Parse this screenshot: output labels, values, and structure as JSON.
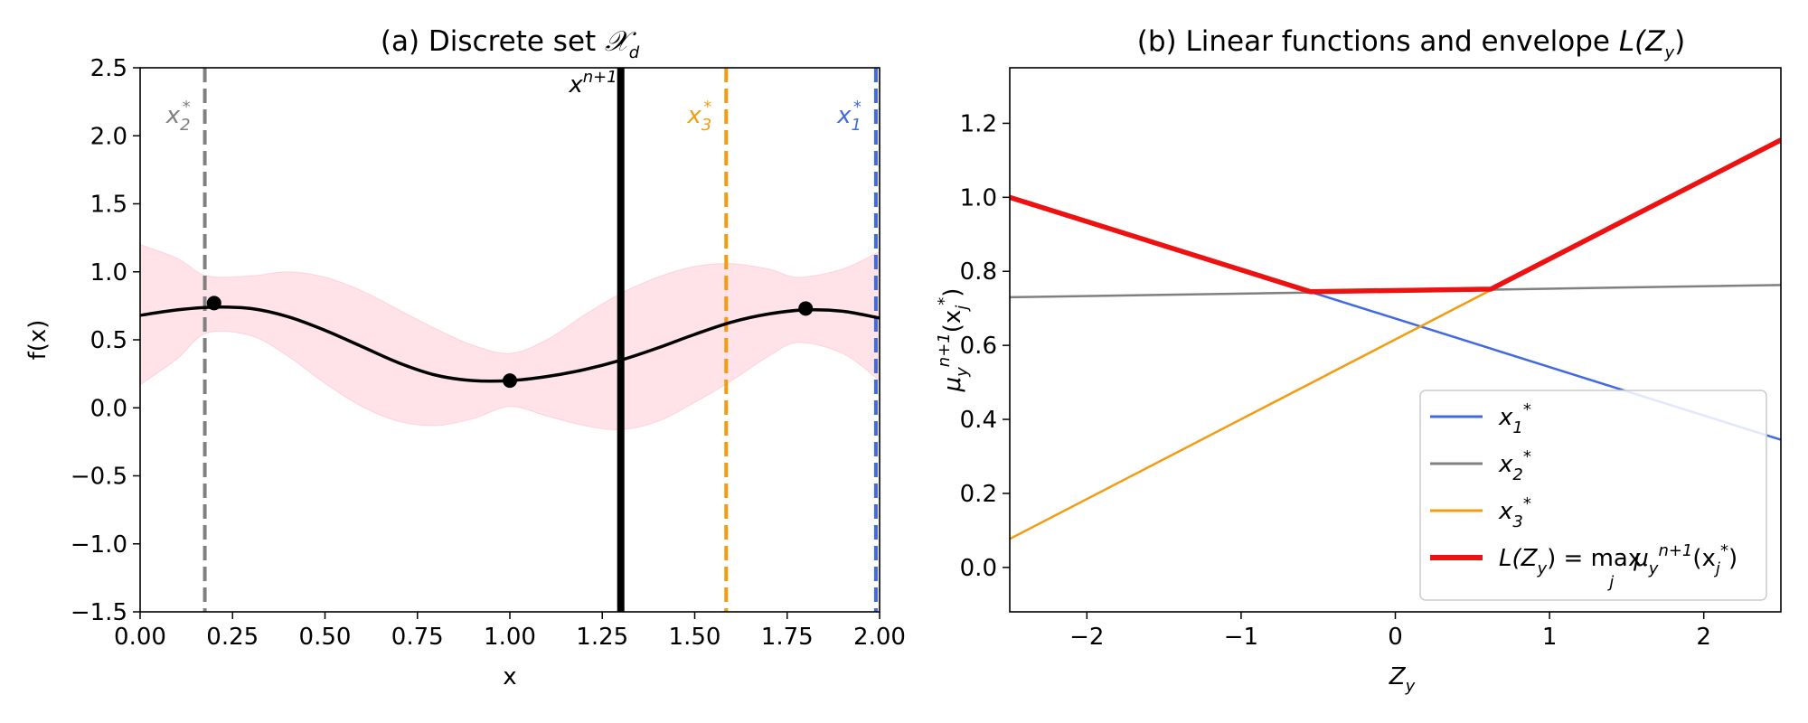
{
  "chart_data": [
    {
      "type": "line",
      "title": "(a) Discrete set 𝒳d",
      "title_main": "(a) Discrete set ",
      "title_sym": "𝒳",
      "title_sub": "d",
      "xlabel": "x",
      "ylabel": "f(x)",
      "xlim": [
        0.0,
        2.0
      ],
      "ylim": [
        -1.5,
        2.5
      ],
      "xticks": [
        "0.00",
        "0.25",
        "0.50",
        "0.75",
        "1.00",
        "1.25",
        "1.50",
        "1.75",
        "2.00"
      ],
      "yticks": [
        "−1.5",
        "−1.0",
        "−0.5",
        "0.0",
        "0.5",
        "1.0",
        "1.5",
        "2.0",
        "2.5"
      ],
      "xtick_values": [
        0.0,
        0.25,
        0.5,
        0.75,
        1.0,
        1.25,
        1.5,
        1.75,
        2.0
      ],
      "ytick_values": [
        -1.5,
        -1.0,
        -0.5,
        0.0,
        0.5,
        1.0,
        1.5,
        2.0,
        2.5
      ],
      "mean_curve": {
        "x": [
          0.0,
          0.1,
          0.2,
          0.3,
          0.4,
          0.5,
          0.6,
          0.7,
          0.8,
          0.9,
          1.0,
          1.1,
          1.2,
          1.3,
          1.4,
          1.5,
          1.6,
          1.7,
          1.8,
          1.9,
          2.0
        ],
        "y": [
          0.68,
          0.72,
          0.74,
          0.73,
          0.67,
          0.57,
          0.45,
          0.33,
          0.24,
          0.2,
          0.2,
          0.23,
          0.28,
          0.35,
          0.44,
          0.54,
          0.63,
          0.69,
          0.72,
          0.71,
          0.66
        ],
        "color": "#000000"
      },
      "confidence_band": {
        "x": [
          0.0,
          0.1,
          0.18,
          0.3,
          0.4,
          0.5,
          0.6,
          0.7,
          0.8,
          0.9,
          1.0,
          1.1,
          1.2,
          1.3,
          1.4,
          1.5,
          1.6,
          1.7,
          1.78,
          1.9,
          2.0
        ],
        "upper": [
          1.2,
          1.1,
          0.97,
          0.97,
          1.0,
          0.96,
          0.86,
          0.72,
          0.58,
          0.46,
          0.4,
          0.5,
          0.68,
          0.84,
          0.96,
          1.04,
          1.06,
          1.02,
          0.96,
          1.02,
          1.15
        ],
        "lower": [
          0.17,
          0.36,
          0.55,
          0.53,
          0.38,
          0.18,
          0.01,
          -0.1,
          -0.13,
          -0.08,
          0.01,
          -0.06,
          -0.13,
          -0.16,
          -0.1,
          0.04,
          0.2,
          0.38,
          0.48,
          0.4,
          0.2
        ],
        "color": "#ffc0cb"
      },
      "observations": {
        "x": [
          0.2,
          1.0,
          1.8
        ],
        "y": [
          0.77,
          0.2,
          0.73
        ],
        "color": "#000000"
      },
      "vlines": [
        {
          "x": 0.175,
          "style": "dashed",
          "color": "#808080",
          "label_main": "x",
          "label_sub": "2",
          "label_sup": "*"
        },
        {
          "x": 1.3,
          "style": "solid",
          "color": "#000000",
          "label_main": "x",
          "label_sub": "",
          "label_sup": "n+1"
        },
        {
          "x": 1.585,
          "style": "dashed",
          "color": "#f39c12",
          "label_main": "x",
          "label_sub": "3",
          "label_sup": "*"
        },
        {
          "x": 1.99,
          "style": "dashed",
          "color": "#4169e1",
          "label_main": "x",
          "label_sub": "1",
          "label_sup": "*"
        }
      ]
    },
    {
      "type": "line",
      "title": "(b) Linear functions and envelope L(Zy)",
      "title_main": "(b) Linear functions and envelope ",
      "title_L": "L(Z",
      "title_sub": "y",
      "title_close": ")",
      "xlabel_main": "Z",
      "xlabel_sub": "y",
      "ylabel_main": "μ",
      "ylabel_sub": "y",
      "ylabel_sup": "n+1",
      "ylabel_arg": "(x",
      "ylabel_arg_sub": "j",
      "ylabel_arg_sup": "*",
      "ylabel_close": ")",
      "xlim": [
        -2.5,
        2.5
      ],
      "ylim": [
        -0.12,
        1.35
      ],
      "xticks": [
        "−2",
        "−1",
        "0",
        "1",
        "2"
      ],
      "xtick_values": [
        -2,
        -1,
        0,
        1,
        2
      ],
      "yticks": [
        "0.0",
        "0.2",
        "0.4",
        "0.6",
        "0.8",
        "1.0",
        "1.2"
      ],
      "ytick_values": [
        0.0,
        0.2,
        0.4,
        0.6,
        0.8,
        1.0,
        1.2
      ],
      "series": [
        {
          "label_main": "x",
          "label_sub": "1",
          "label_sup": "*",
          "color": "#4169e1",
          "x": [
            -2.5,
            2.5
          ],
          "y": [
            1.0,
            0.345
          ],
          "width": 2.5
        },
        {
          "label_main": "x",
          "label_sub": "2",
          "label_sup": "*",
          "color": "#808080",
          "x": [
            -2.5,
            2.5
          ],
          "y": [
            0.73,
            0.763
          ],
          "width": 2.5
        },
        {
          "label_main": "x",
          "label_sub": "3",
          "label_sup": "*",
          "color": "#f39c12",
          "x": [
            -2.5,
            2.5
          ],
          "y": [
            0.077,
            1.155
          ],
          "width": 2.5
        },
        {
          "label": "L(Zy) = max_j μy^{n+1}(xj*)",
          "color": "#ee1111",
          "x": [
            -2.5,
            -0.55,
            0.62,
            2.5
          ],
          "y": [
            1.0,
            0.745,
            0.752,
            1.155
          ],
          "width": 5.5
        }
      ],
      "legend_L_text1": "L(Z",
      "legend_L_sub1": "y",
      "legend_L_text2": ") = max",
      "legend_L_sub_j": "j",
      "legend_L_mu": "μ",
      "legend_L_mu_sub": "y",
      "legend_L_mu_sup": "n+1",
      "legend_L_arg": "(x",
      "legend_L_arg_sub": "j",
      "legend_L_arg_sup": "*",
      "legend_L_close": ")",
      "legend_position": "lower-right"
    }
  ]
}
